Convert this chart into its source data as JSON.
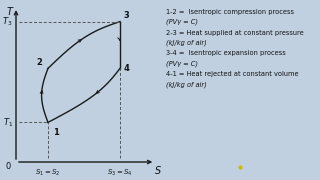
{
  "bg_color": "#c0d0e0",
  "points": {
    "1": [
      0.3,
      0.32
    ],
    "2": [
      0.3,
      0.62
    ],
    "3": [
      0.75,
      0.88
    ],
    "4": [
      0.75,
      0.62
    ]
  },
  "legend_blocks": [
    {
      "main": "1-2 =  Isentropic compression process",
      "sub": "(PVγ = C)"
    },
    {
      "main": "2-3 = Heat supplied at constant pressure",
      "sub": "(kJ/kg of air)"
    },
    {
      "main": "3-4 =  Isentropic expansion process",
      "sub": "(PVγ = C)"
    },
    {
      "main": "4-1 = Heat rejected at constant volume",
      "sub": "(kJ/kg of air)"
    }
  ],
  "line_color": "#1a1a1a",
  "dashed_color": "#555555",
  "text_color": "#111111",
  "yellow_dot": [
    0.5,
    0.06
  ]
}
